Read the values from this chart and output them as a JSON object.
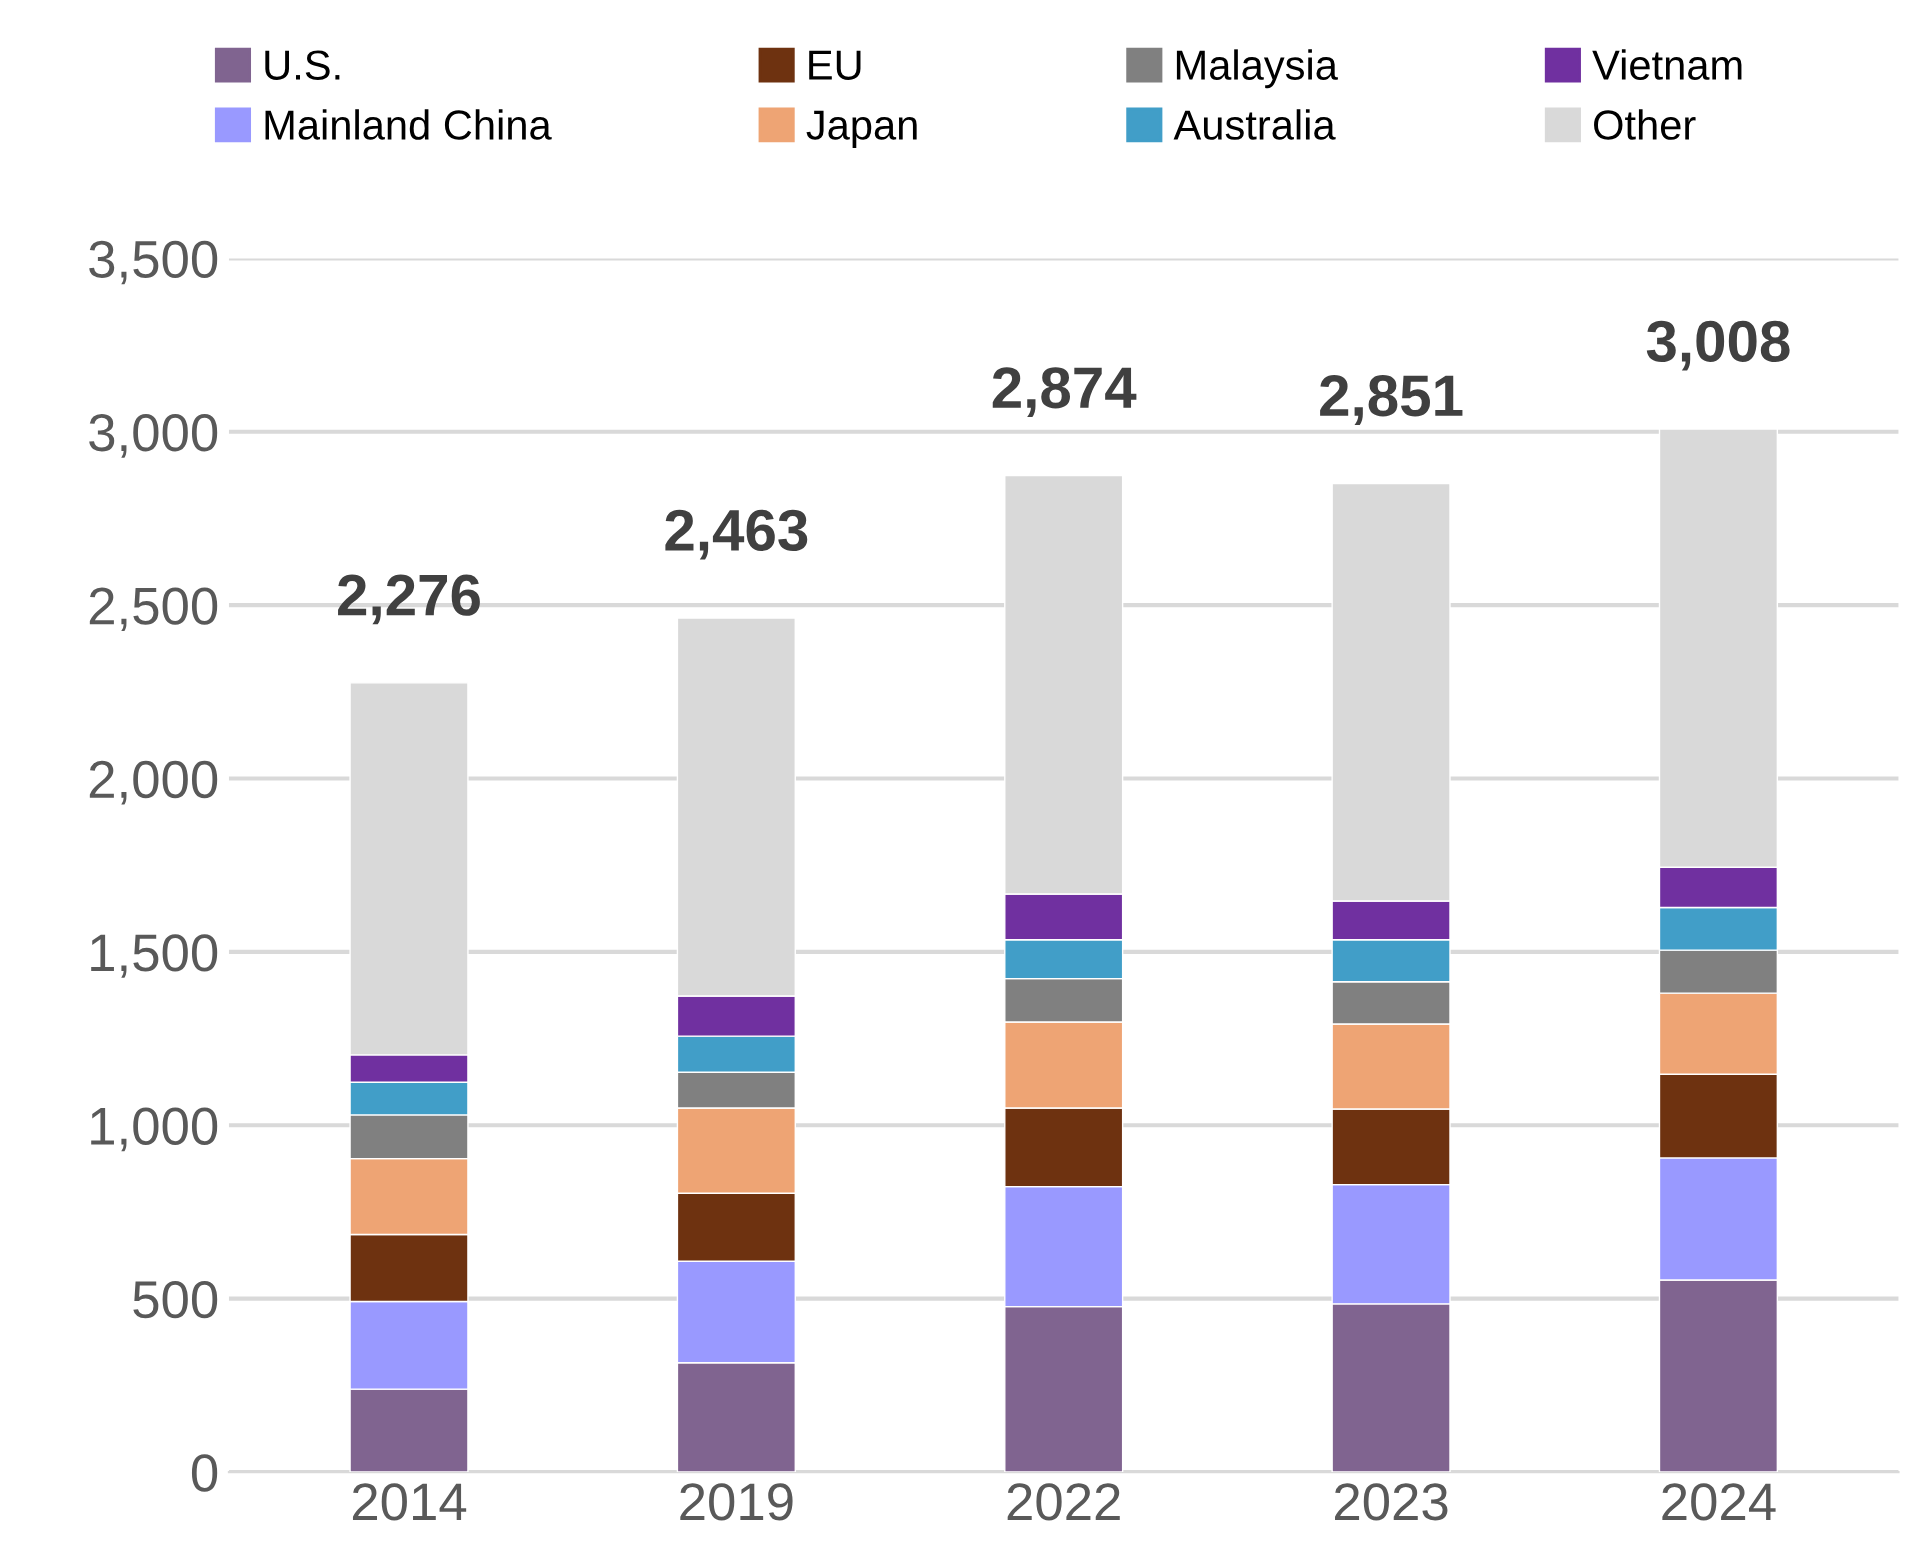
{
  "chart_data": {
    "type": "bar",
    "stacked": true,
    "categories": [
      "2014",
      "2019",
      "2022",
      "2023",
      "2024"
    ],
    "series": [
      {
        "name": "U.S.",
        "color": "#806490",
        "values": [
          239,
          315,
          477,
          485,
          554
        ]
      },
      {
        "name": "Mainland China",
        "color": "#9999ff",
        "values": [
          253,
          293,
          346,
          344,
          352
        ]
      },
      {
        "name": "EU",
        "color": "#6e3210",
        "values": [
          193,
          196,
          227,
          218,
          241
        ]
      },
      {
        "name": "Japan",
        "color": "#eea474",
        "values": [
          219,
          246,
          248,
          245,
          234
        ]
      },
      {
        "name": "Malaysia",
        "color": "#808080",
        "values": [
          126,
          103,
          125,
          122,
          124
        ]
      },
      {
        "name": "Australia",
        "color": "#419ec8",
        "values": [
          94,
          104,
          112,
          121,
          123
        ]
      },
      {
        "name": "Vietnam",
        "color": "#7030a0",
        "values": [
          79,
          116,
          132,
          112,
          116
        ]
      },
      {
        "name": "Other",
        "color": "#d9d9d9",
        "values": [
          1073,
          1090,
          1207,
          1204,
          1264
        ]
      }
    ],
    "totals": [
      "2,276",
      "2,463",
      "2,874",
      "2,851",
      "3,008"
    ],
    "ylim": [
      0,
      3500
    ],
    "yticks": [
      {
        "value": 0,
        "label": "0"
      },
      {
        "value": 500,
        "label": "500"
      },
      {
        "value": 1000,
        "label": "1,000"
      },
      {
        "value": 1500,
        "label": "1,500"
      },
      {
        "value": 2000,
        "label": "2,000"
      },
      {
        "value": 2500,
        "label": "2,500"
      },
      {
        "value": 3000,
        "label": "3,000"
      },
      {
        "value": 3500,
        "label": "3,500"
      }
    ],
    "grid": "y",
    "legend": "top"
  }
}
